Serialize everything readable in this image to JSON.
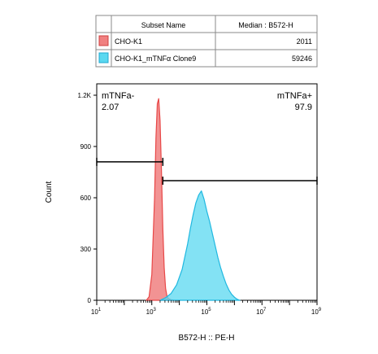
{
  "legend_table": {
    "headers": [
      "Subset Name",
      "Median : B572-H"
    ],
    "rows": [
      {
        "name": "CHO-K1",
        "median": "2011",
        "color": "#f08080"
      },
      {
        "name": "CHO-K1_mTNFα Clone9",
        "median": "59246",
        "color": "#5ad8f0"
      }
    ]
  },
  "chart_data": {
    "type": "area",
    "xlabel": "B572-H :: PE-H",
    "ylabel": "Count",
    "x_scale": "log",
    "xlim": [
      10,
      1000000000
    ],
    "ylim": [
      0,
      1200
    ],
    "x_ticks": [
      {
        "value": 10,
        "base": "10",
        "exp": "1"
      },
      {
        "value": 1000,
        "base": "10",
        "exp": "3"
      },
      {
        "value": 100000,
        "base": "10",
        "exp": "5"
      },
      {
        "value": 10000000,
        "base": "10",
        "exp": "7"
      },
      {
        "value": 1000000000,
        "base": "10",
        "exp": "9"
      }
    ],
    "y_ticks": [
      {
        "value": 0,
        "label": "0"
      },
      {
        "value": 300,
        "label": "300"
      },
      {
        "value": 600,
        "label": "600"
      },
      {
        "value": 900,
        "label": "900"
      },
      {
        "value": 1200,
        "label": "1.2K"
      }
    ],
    "series": [
      {
        "name": "CHO-K1",
        "fill": "#f08080",
        "stroke": "#e84848",
        "x": [
          631,
          794,
          1000,
          1259,
          1413,
          1585,
          1778,
          1995,
          2239,
          2512,
          2818,
          3162,
          3548,
          3981,
          5012,
          6310
        ],
        "y": [
          0,
          20,
          150,
          600,
          950,
          1150,
          1180,
          1050,
          760,
          420,
          190,
          70,
          25,
          10,
          3,
          0
        ]
      },
      {
        "name": "CHO-K1_mTNFα Clone9",
        "fill": "#5ad8f0",
        "stroke": "#20b8e0",
        "x": [
          1995,
          3162,
          5012,
          7943,
          12589,
          19953,
          25119,
          31623,
          39811,
          50119,
          63096,
          79433,
          100000,
          125893,
          158489,
          199526,
          251189,
          316228,
          398107,
          501187,
          630957,
          794328,
          1000000,
          1258925,
          1584893
        ],
        "y": [
          0,
          15,
          40,
          90,
          180,
          330,
          420,
          500,
          570,
          615,
          640,
          590,
          520,
          460,
          390,
          320,
          250,
          190,
          140,
          95,
          60,
          35,
          18,
          6,
          0
        ]
      }
    ],
    "gates": [
      {
        "name": "mTNFa-",
        "value": "2.07",
        "x_start": 10,
        "x_end": 2512,
        "y": 810
      },
      {
        "name": "mTNFa+",
        "value": "97.9",
        "x_start": 2512,
        "x_end": 1000000000,
        "y": 700
      }
    ]
  }
}
